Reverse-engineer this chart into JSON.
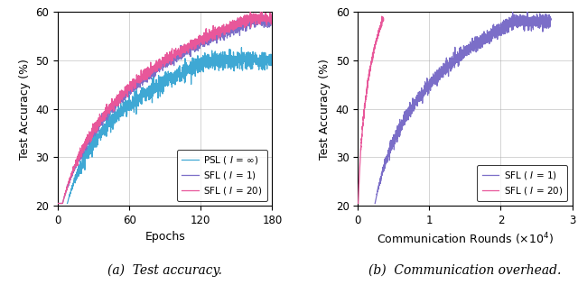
{
  "left": {
    "ylim": [
      20,
      60
    ],
    "xlim": [
      0,
      180
    ],
    "xticks": [
      0,
      60,
      120,
      180
    ],
    "yticks": [
      20,
      30,
      40,
      50,
      60
    ],
    "xlabel": "Epochs",
    "ylabel": "Test Accuracy (%)",
    "caption": "(a)  Test accuracy.",
    "sfl20_color": "#e8579a",
    "sfl1_color": "#7b6ec8",
    "psl_color": "#3fa8d4",
    "sfl20_label": "SFL ( $I$ = 20)",
    "sfl1_label": "SFL ( $I$ = 1)",
    "psl_label": "PSL ( $I$ = $\\infty$)"
  },
  "right": {
    "ylim": [
      20,
      60
    ],
    "xlim": [
      0,
      30000
    ],
    "xticks": [
      0,
      10000,
      20000,
      30000
    ],
    "yticks": [
      20,
      30,
      40,
      50,
      60
    ],
    "xlabel": "Communication Rounds ($\\times 10^4$)",
    "ylabel": "Test Accuracy (%)",
    "caption": "(b)  Communication overhead.",
    "sfl20_color": "#e8579a",
    "sfl1_color": "#7b6ec8",
    "sfl20_label": "SFL ( $I$ = 20)",
    "sfl1_label": "SFL ( $I$ = 1)"
  }
}
